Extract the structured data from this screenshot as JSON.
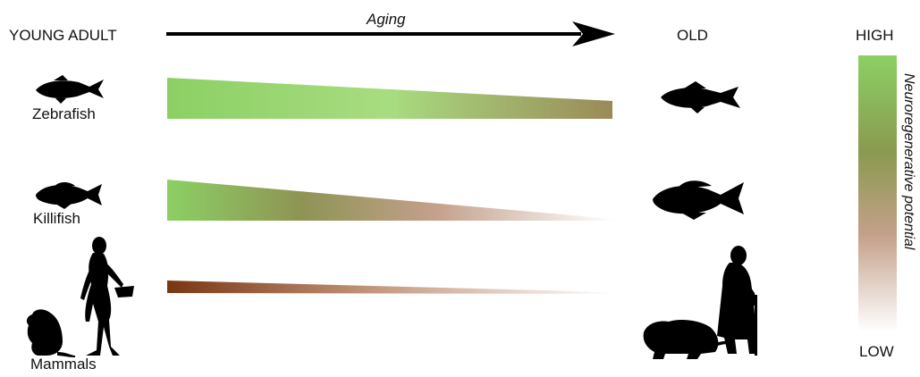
{
  "header": {
    "young_label": "YOUNG ADULT",
    "old_label": "OLD",
    "axis_label": "Aging"
  },
  "species": [
    {
      "label": "Zebrafish",
      "icon": "zebrafish-icon"
    },
    {
      "label": "Killifish",
      "icon": "killifish-icon"
    },
    {
      "label": "Mammals",
      "icon": "mammal-icon"
    }
  ],
  "scale": {
    "high_label": "HIGH",
    "low_label": "LOW",
    "title": "Neuroregenerative potential",
    "colors": [
      "#8fd468",
      "#8a9a50",
      "#c4a08a",
      "#ffffff"
    ]
  },
  "colors": {
    "green_high": "#8fd468",
    "olive": "#9a9050",
    "brown_dark": "#7a3510"
  }
}
